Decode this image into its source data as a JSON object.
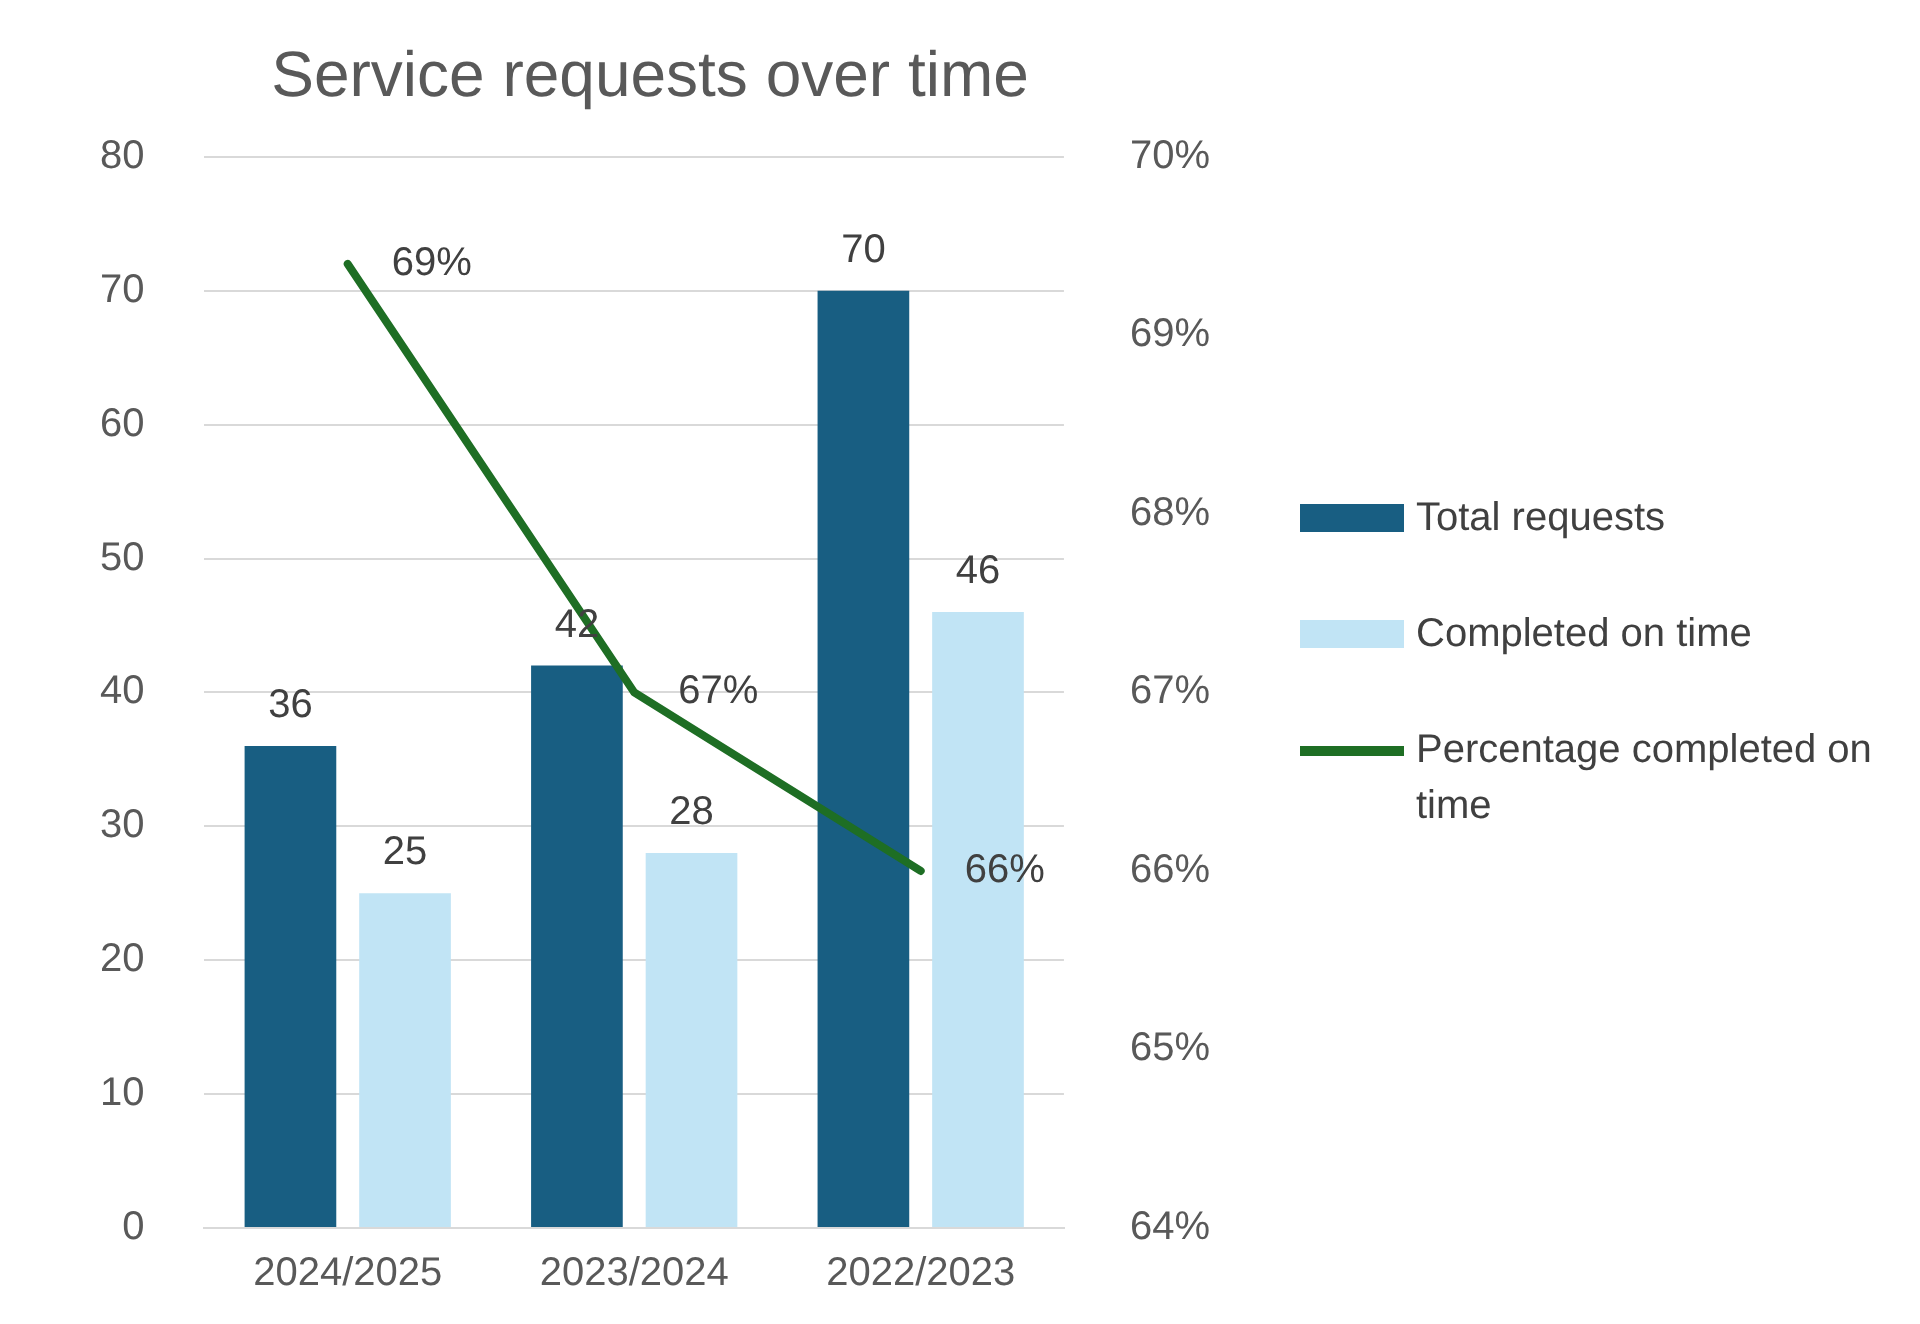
{
  "chart_data": {
    "type": "bar",
    "title": "Service requests over time",
    "categories": [
      "2024/2025",
      "2023/2024",
      "2022/2023"
    ],
    "series": [
      {
        "name": "Total requests",
        "color": "#185e82",
        "values": [
          36,
          42,
          70
        ]
      },
      {
        "name": "Completed on time",
        "color": "#c1e4f5",
        "values": [
          25,
          28,
          46
        ]
      },
      {
        "name": "Percentage completed on time",
        "type": "line",
        "axis": "y2",
        "color": "#1e6e24",
        "values": [
          69.4,
          67,
          66
        ],
        "value_labels": [
          "69%",
          "67%",
          "66%"
        ]
      }
    ],
    "ylim": [
      0,
      80
    ],
    "yticks": [
      0,
      10,
      20,
      30,
      40,
      50,
      60,
      70,
      80
    ],
    "y2lim": [
      64,
      70
    ],
    "y2ticks": [
      {
        "value": 64,
        "label": "64%"
      },
      {
        "value": 65,
        "label": "65%"
      },
      {
        "value": 66,
        "label": "66%"
      },
      {
        "value": 67,
        "label": "67%"
      },
      {
        "value": 68,
        "label": "68%"
      },
      {
        "value": 69,
        "label": "69%"
      },
      {
        "value": 70,
        "label": "70%"
      }
    ],
    "data_labels": true,
    "grid": "y",
    "legend": "right",
    "marker": "none"
  }
}
